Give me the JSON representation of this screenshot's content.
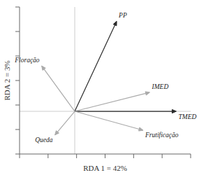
{
  "chart_data": {
    "type": "biplot",
    "xlabel": "RDA 1 = 42%",
    "ylabel": "RDA 2 = 3%",
    "xlim": [
      -0.5,
      1.05
    ],
    "ylim": [
      -0.45,
      1.1
    ],
    "xticks": [
      -0.5,
      -0.2416666666666667,
      0.0166666666666667,
      0.275,
      0.5333333333333333,
      0.7916666666666667,
      1.05
    ],
    "yticks": [
      -0.45,
      -0.19166666666666665,
      0.06666666666666665,
      0.325,
      0.5833333333333334,
      0.8416666666666668,
      1.1
    ],
    "tick_labels": false,
    "origin": [
      0.0,
      0.0
    ],
    "vectors": [
      {
        "label": "PP",
        "x": 0.38,
        "y": 0.95,
        "color": "#2a2a2a"
      },
      {
        "label": "Floração",
        "x": -0.3,
        "y": 0.48,
        "color": "#aaaaaa"
      },
      {
        "label": "IMED",
        "x": 0.68,
        "y": 0.2,
        "color": "#aaaaaa"
      },
      {
        "label": "TMED",
        "x": 0.92,
        "y": 0.0,
        "color": "#2a2a2a"
      },
      {
        "label": "Queda",
        "x": -0.18,
        "y": -0.25,
        "color": "#aaaaaa"
      },
      {
        "label": "Frutificação",
        "x": 0.62,
        "y": -0.2,
        "color": "#aaaaaa"
      }
    ]
  }
}
